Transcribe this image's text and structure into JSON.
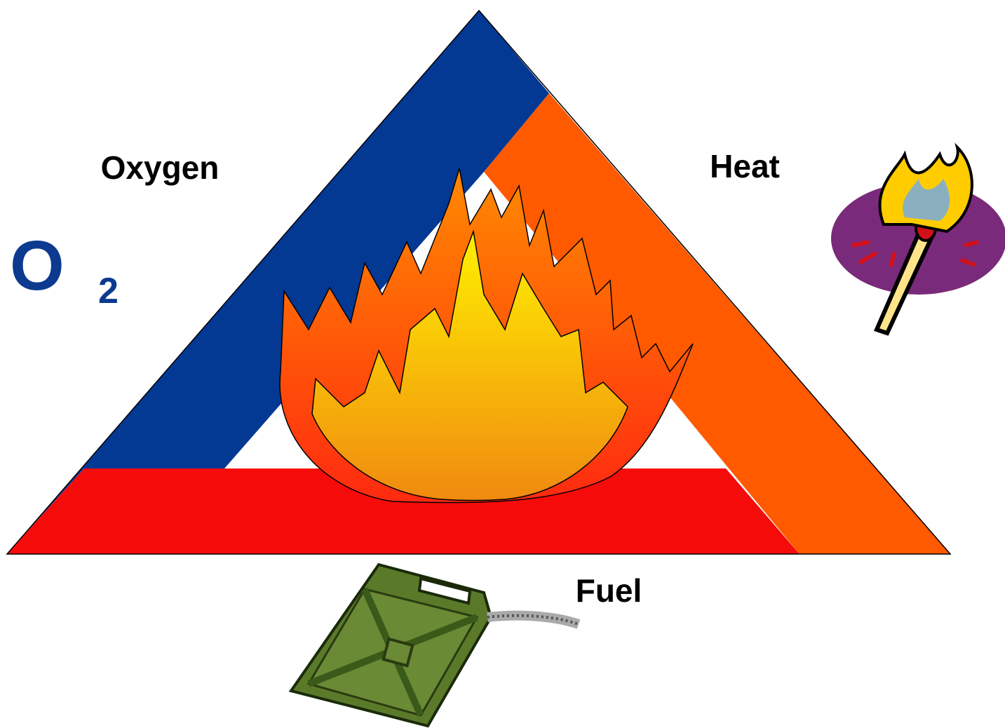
{
  "labels": {
    "oxygen": "Oxygen",
    "heat": "Heat",
    "fuel": "Fuel"
  },
  "formula": {
    "symbol": "O",
    "subscript": "2"
  }
}
